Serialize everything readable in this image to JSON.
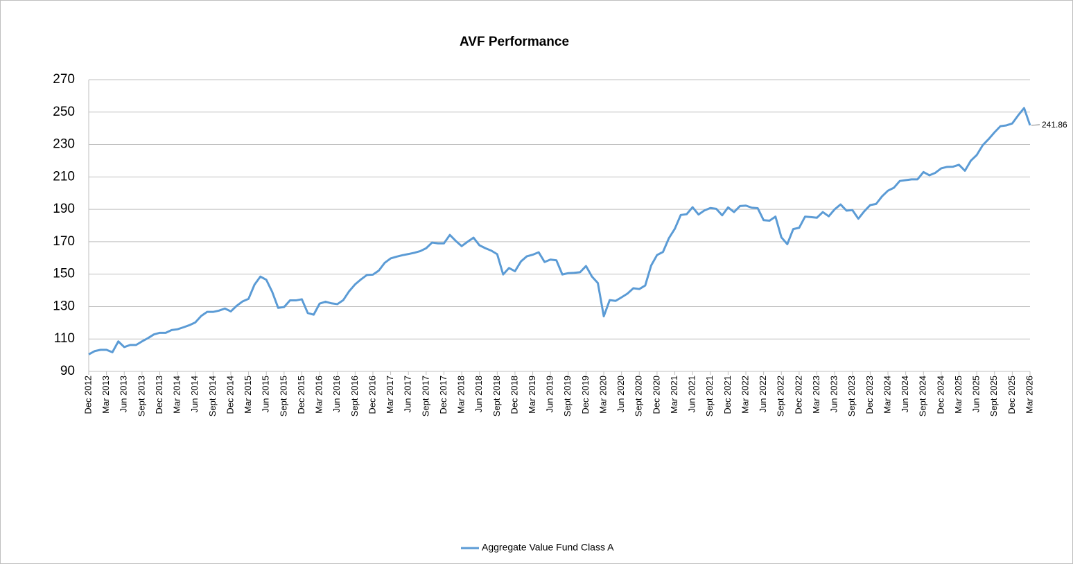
{
  "chart_data": {
    "type": "line",
    "title": "AVF Performance",
    "categories": [
      "Dec 2012",
      null,
      null,
      "Mar 2013",
      null,
      null,
      "Jun 2013",
      null,
      null,
      "Sept 2013",
      null,
      null,
      "Dec 2013",
      null,
      null,
      "Mar 2014",
      null,
      null,
      "Jun 2014",
      null,
      null,
      "Sept 2014",
      null,
      null,
      "Dec 2014",
      null,
      null,
      "Mar 2015",
      null,
      null,
      "Jun 2015",
      null,
      null,
      "Sept 2015",
      null,
      null,
      "Dec 2015",
      null,
      null,
      "Mar 2016",
      null,
      null,
      "Jun 2016",
      null,
      null,
      "Sept 2016",
      null,
      null,
      "Dec 2016",
      null,
      null,
      "Mar 2017",
      null,
      null,
      "Jun 2017",
      null,
      null,
      "Sept 2017",
      null,
      null,
      "Dec 2017",
      null,
      null,
      "Mar 2018",
      null,
      null,
      "Jun 2018",
      null,
      null,
      "Sept 2018",
      null,
      null,
      "Dec 2018",
      null,
      null,
      "Mar 2019",
      null,
      null,
      "Jun 2019",
      null,
      null,
      "Sept 2019",
      null,
      null,
      "Dec 2019",
      null,
      null,
      "Mar 2020",
      null,
      null,
      "Jun 2020",
      null,
      null,
      "Sept 2020",
      null,
      null,
      "Dec 2020",
      null,
      null,
      "Mar 2021",
      null,
      null,
      "Jun 2021",
      null,
      null,
      "Sept 2021",
      null,
      null,
      "Dec 2021",
      null,
      null,
      "Mar 2022",
      null,
      null,
      "Jun 2022",
      null,
      null,
      "Sept 2022",
      null,
      null,
      "Dec 2022",
      null,
      null,
      "Mar 2023",
      null,
      null,
      "Jun 2023",
      null,
      null,
      "Sept 2023",
      null,
      null,
      "Dec 2023",
      null,
      null,
      "Mar 2024",
      null,
      null,
      "Jun 2024",
      null,
      null,
      "Sept 2024",
      null,
      null,
      "Dec 2024",
      null,
      null,
      "Mar 2025",
      null,
      null,
      "Jun 2025",
      null,
      null,
      "Sept 2025",
      null,
      null,
      "Dec 2025",
      null,
      null,
      "Mar 2026"
    ],
    "series": [
      {
        "name": "Aggregate Value Fund Class A",
        "color": "#5b9bd5",
        "values": [
          100.5,
          102.5,
          103.3,
          103.3,
          101.8,
          108.5,
          105,
          106.3,
          106.3,
          108.5,
          110.5,
          112.8,
          113.8,
          113.8,
          115.5,
          116,
          117.2,
          118.5,
          120.2,
          124.2,
          126.7,
          126.7,
          127.5,
          128.8,
          127,
          130.5,
          133.2,
          134.8,
          143.5,
          148.5,
          146.5,
          139,
          129.2,
          129.7,
          133.8,
          133.8,
          134.5,
          126,
          125,
          131.8,
          133,
          132,
          131.5,
          134,
          139.5,
          143.7,
          146.8,
          149.5,
          149.7,
          152.2,
          157,
          159.7,
          160.8,
          161.7,
          162.4,
          163.2,
          164.2,
          166,
          169.5,
          169,
          169,
          174.2,
          170.5,
          167.3,
          170,
          172.5,
          167.8,
          166,
          164.5,
          162.3,
          149.8,
          153.8,
          151.8,
          157.8,
          161,
          162,
          163.5,
          157.5,
          159,
          158.5,
          149.8,
          150.6,
          150.8,
          151.2,
          155,
          148.5,
          144.5,
          124,
          134,
          133.5,
          135.7,
          138,
          141.3,
          140.8,
          143,
          155.3,
          161.8,
          163.7,
          172.2,
          178,
          186.5,
          187,
          191.3,
          186.8,
          189.3,
          190.8,
          190.3,
          186.3,
          191.2,
          188.3,
          192,
          192.3,
          191,
          190.7,
          183.3,
          183,
          185.5,
          172.7,
          168.5,
          177.8,
          178.6,
          185.5,
          185.2,
          184.8,
          188.3,
          185.7,
          190,
          193,
          189.2,
          189.5,
          184.2,
          188.8,
          192.6,
          193.3,
          198,
          201.5,
          203.3,
          207.5,
          208,
          208.5,
          208.5,
          213,
          211,
          212.5,
          215.3,
          216.2,
          216.3,
          217.5,
          213.8,
          220,
          223.5,
          229.5,
          233.3,
          237.5,
          241.3,
          241.8,
          243,
          248,
          252.5,
          241.86
        ]
      }
    ],
    "ylim": [
      90,
      270
    ],
    "yticks": [
      90,
      110,
      130,
      150,
      170,
      190,
      210,
      230,
      250,
      270
    ],
    "grid": true,
    "legend": "bottom"
  }
}
